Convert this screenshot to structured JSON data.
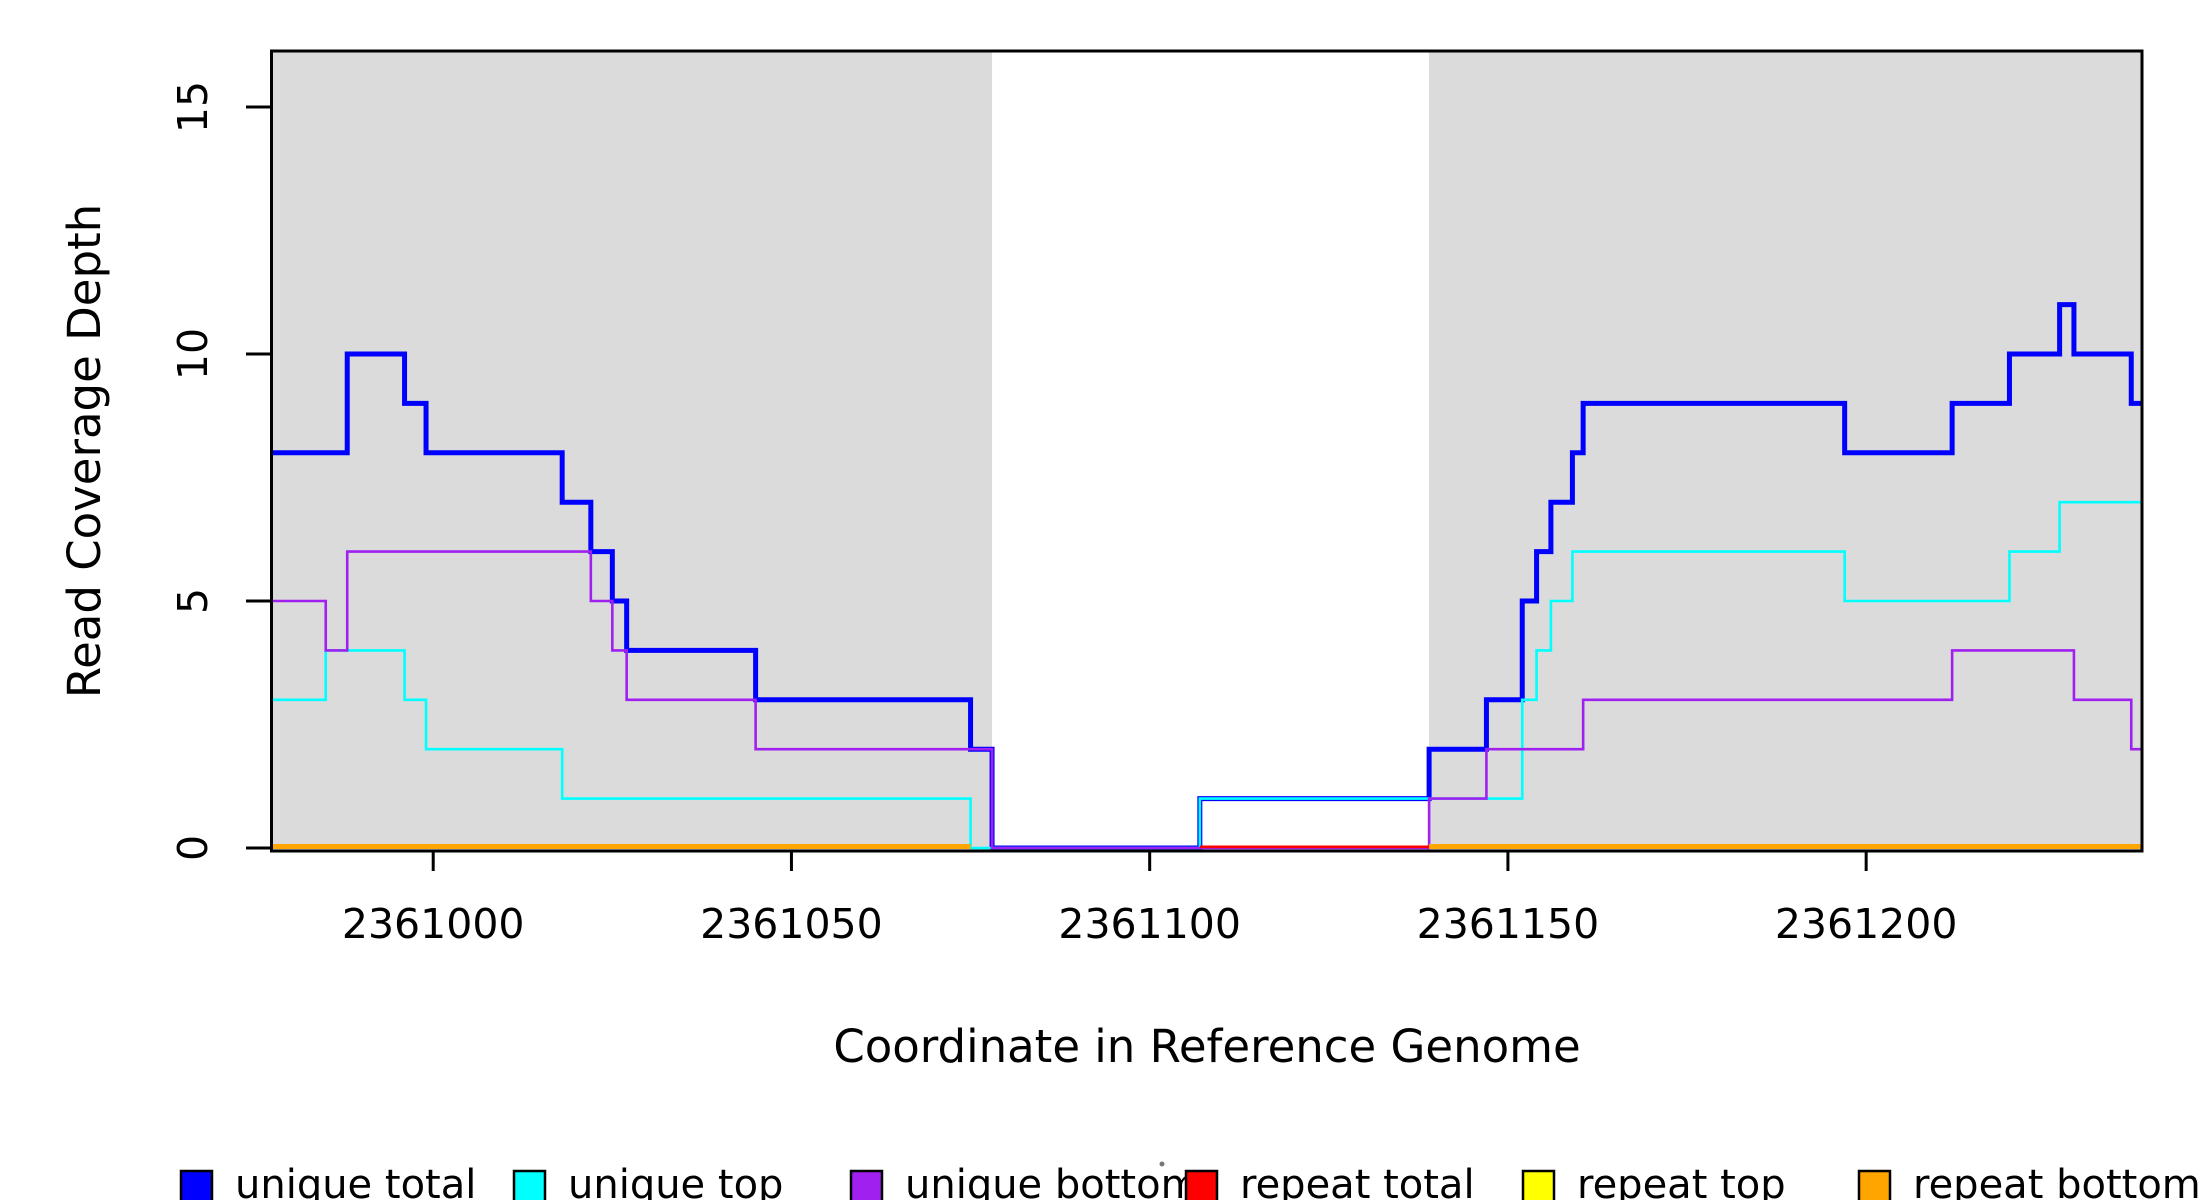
{
  "figure": {
    "x_axis_title": "Coordinate in Reference Genome",
    "y_axis_title": "Read Coverage Depth"
  },
  "axes": {
    "x_ticks": [
      {
        "value": 2361000,
        "label": "2361000"
      },
      {
        "value": 2361050,
        "label": "2361050"
      },
      {
        "value": 2361100,
        "label": "2361100"
      },
      {
        "value": 2361150,
        "label": "2361150"
      },
      {
        "value": 2361200,
        "label": "2361200"
      }
    ],
    "y_ticks": [
      {
        "value": 0,
        "label": "0"
      },
      {
        "value": 5,
        "label": "5"
      },
      {
        "value": 10,
        "label": "10"
      },
      {
        "value": 15,
        "label": "15"
      }
    ]
  },
  "legend": {
    "entries": [
      {
        "label": "unique total",
        "color": "#0000FF"
      },
      {
        "label": "unique top",
        "color": "#00FFFF"
      },
      {
        "label": "unique bottom",
        "color": "#A020F0"
      },
      {
        "label": "repeat total",
        "color": "#FF0000"
      },
      {
        "label": "repeat top",
        "color": "#FFFF00"
      },
      {
        "label": "repeat bottom",
        "color": "#FFA500"
      }
    ]
  },
  "chart_data": {
    "type": "line",
    "subtype": "step",
    "title": "",
    "xlabel": "Coordinate in Reference Genome",
    "ylabel": "Read Coverage Depth",
    "xlim": [
      2360977.5,
      2361238.5
    ],
    "ylim": [
      0,
      16.2
    ],
    "grid": false,
    "legend_position": "bottom",
    "background_color": "#ffffff",
    "shaded_region_color": "#DBDBDB",
    "shaded_regions": [
      {
        "name": "left-repeat-region",
        "x_start": 2360977.5,
        "x_end": 2361078
      },
      {
        "name": "right-repeat-region",
        "x_start": 2361139,
        "x_end": 2361238.5
      }
    ],
    "series": [
      {
        "name": "unique total",
        "color": "#0000FF",
        "width": 5,
        "x_end": 2361238.5,
        "steps": [
          [
            2360977.5,
            8
          ],
          [
            2360988,
            10
          ],
          [
            2360996,
            9
          ],
          [
            2360999,
            8
          ],
          [
            2361018,
            7
          ],
          [
            2361022,
            6
          ],
          [
            2361025,
            5
          ],
          [
            2361027,
            4
          ],
          [
            2361045,
            3
          ],
          [
            2361075,
            2
          ],
          [
            2361078,
            0
          ],
          [
            2361107,
            1
          ],
          [
            2361139,
            2
          ],
          [
            2361147,
            3
          ],
          [
            2361152,
            5
          ],
          [
            2361154,
            6
          ],
          [
            2361156,
            7
          ],
          [
            2361159,
            8
          ],
          [
            2361160.5,
            9
          ],
          [
            2361197,
            8
          ],
          [
            2361212,
            9
          ],
          [
            2361220,
            10
          ],
          [
            2361227,
            11
          ],
          [
            2361229,
            10
          ],
          [
            2361237,
            9
          ]
        ]
      },
      {
        "name": "unique top",
        "color": "#00FFFF",
        "width": 2.6,
        "x_end": 2361238.5,
        "steps": [
          [
            2360977.5,
            3
          ],
          [
            2360985,
            4
          ],
          [
            2360996,
            3
          ],
          [
            2360999,
            2
          ],
          [
            2361018,
            1
          ],
          [
            2361075,
            0
          ],
          [
            2361107,
            1
          ],
          [
            2361152,
            3
          ],
          [
            2361154,
            4
          ],
          [
            2361156,
            5
          ],
          [
            2361159,
            6
          ],
          [
            2361197,
            5
          ],
          [
            2361220,
            6
          ],
          [
            2361227,
            7
          ]
        ]
      },
      {
        "name": "unique bottom",
        "color": "#A020F0",
        "width": 2.6,
        "x_end": 2361238.5,
        "steps": [
          [
            2360977.5,
            5
          ],
          [
            2360985,
            4
          ],
          [
            2360988,
            6
          ],
          [
            2361022,
            5
          ],
          [
            2361025,
            4
          ],
          [
            2361027,
            3
          ],
          [
            2361045,
            2
          ],
          [
            2361078,
            0
          ],
          [
            2361139,
            1
          ],
          [
            2361147,
            2
          ],
          [
            2361160.5,
            3
          ],
          [
            2361212,
            4
          ],
          [
            2361229,
            3
          ],
          [
            2361237,
            2
          ]
        ]
      },
      {
        "name": "repeat total",
        "color": "#FF0000",
        "width": 2.6,
        "x_end": 2361139,
        "y_offset": -1.2,
        "steps": [
          [
            2361107,
            0
          ]
        ]
      },
      {
        "name": "repeat top",
        "color": "#FFFF00",
        "width": 3,
        "x_end": 2361238.5,
        "y_offset": -1.5,
        "steps": [
          [
            2360977.5,
            0
          ],
          [
            2361075,
            null
          ],
          [
            2361139,
            0
          ]
        ]
      },
      {
        "name": "repeat bottom",
        "color": "#FFA500",
        "width": 5,
        "x_end": 2361238.5,
        "y_offset": -1.5,
        "steps": [
          [
            2360977.5,
            0
          ],
          [
            2361075,
            null
          ],
          [
            2361139,
            0
          ]
        ]
      }
    ]
  }
}
